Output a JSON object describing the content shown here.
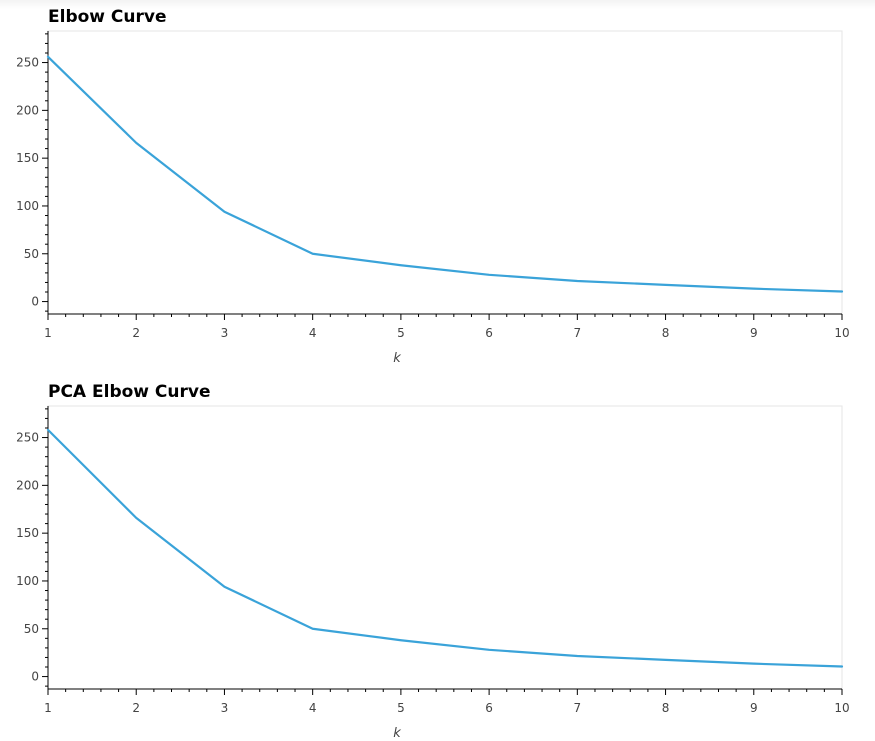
{
  "colors": {
    "line": "#3aa3d9",
    "frame": "#e5e5e5",
    "axis": "#000000",
    "tick_text": "#444444",
    "title": "#000000"
  },
  "chart_data": [
    {
      "type": "line",
      "title": "Elbow Curve",
      "xlabel": "k",
      "ylabel": "",
      "x": [
        1,
        2,
        3,
        4,
        5,
        6,
        7,
        8,
        9,
        10
      ],
      "series": [
        {
          "values": [
            256,
            166,
            94,
            50,
            38,
            28,
            21.5,
            17.5,
            13.5,
            10.5
          ]
        }
      ],
      "xlim": [
        1,
        10
      ],
      "ylim": [
        -13,
        283
      ],
      "xticks": [
        1,
        2,
        3,
        4,
        5,
        6,
        7,
        8,
        9,
        10
      ],
      "yticks": [
        0,
        50,
        100,
        150,
        200,
        250
      ],
      "grid": false,
      "legend": "none"
    },
    {
      "type": "line",
      "title": "PCA Elbow Curve",
      "xlabel": "k",
      "ylabel": "",
      "x": [
        1,
        2,
        3,
        4,
        5,
        6,
        7,
        8,
        9,
        10
      ],
      "series": [
        {
          "values": [
            258,
            166,
            94,
            50,
            38,
            28,
            21.5,
            17.5,
            13.5,
            10.5
          ]
        }
      ],
      "xlim": [
        1,
        10
      ],
      "ylim": [
        -13,
        283
      ],
      "xticks": [
        1,
        2,
        3,
        4,
        5,
        6,
        7,
        8,
        9,
        10
      ],
      "yticks": [
        0,
        50,
        100,
        150,
        200,
        250
      ],
      "grid": false,
      "legend": "none"
    }
  ]
}
